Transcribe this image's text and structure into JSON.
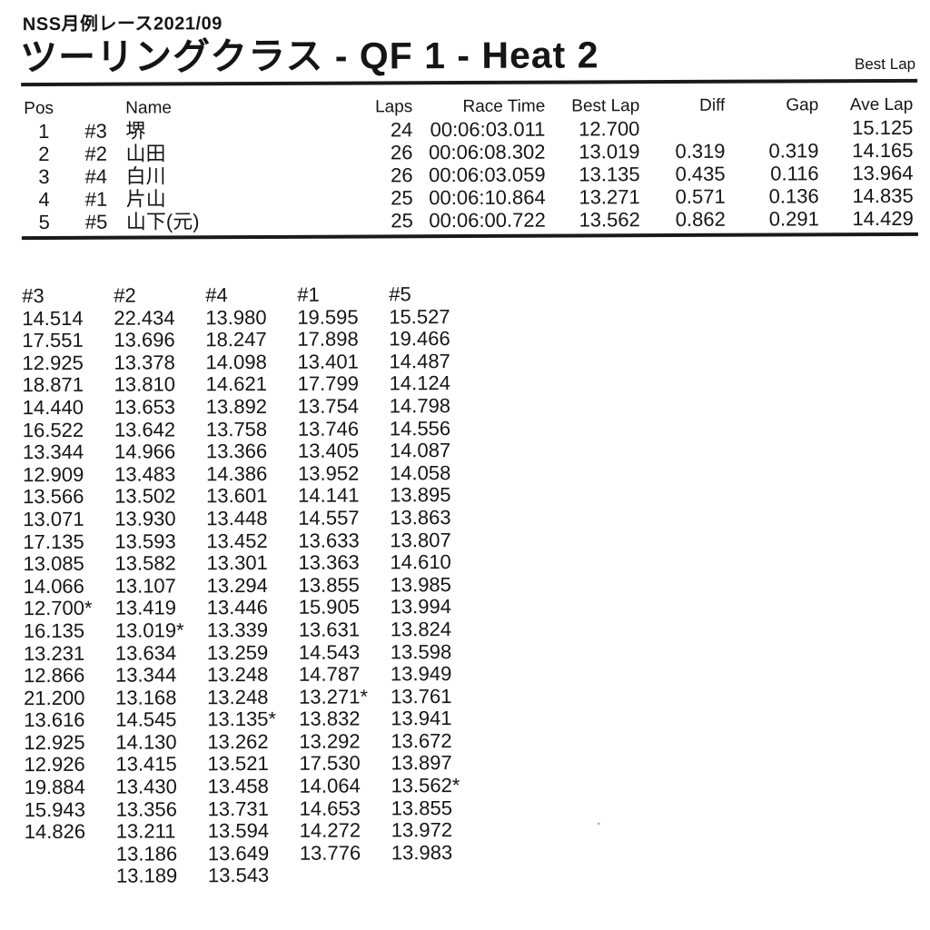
{
  "page": {
    "event_title": "NSS月例レース2021/09",
    "main_title": "ツーリングクラス - QF 1 - Heat 2",
    "best_lap_label": "Best Lap"
  },
  "results_table": {
    "headers": {
      "pos": "Pos",
      "name": "Name",
      "laps": "Laps",
      "race_time": "Race Time",
      "best_lap": "Best Lap",
      "diff": "Diff",
      "gap": "Gap",
      "ave_lap": "Ave Lap"
    },
    "rows": [
      {
        "pos": "1",
        "car": "#3",
        "name": "堺",
        "laps": "24",
        "race_time": "00:06:03.011",
        "best_lap": "12.700",
        "diff": "",
        "gap": "",
        "ave_lap": "15.125"
      },
      {
        "pos": "2",
        "car": "#2",
        "name": "山田",
        "laps": "26",
        "race_time": "00:06:08.302",
        "best_lap": "13.019",
        "diff": "0.319",
        "gap": "0.319",
        "ave_lap": "14.165"
      },
      {
        "pos": "3",
        "car": "#4",
        "name": "白川",
        "laps": "26",
        "race_time": "00:06:03.059",
        "best_lap": "13.135",
        "diff": "0.435",
        "gap": "0.116",
        "ave_lap": "13.964"
      },
      {
        "pos": "4",
        "car": "#1",
        "name": "片山",
        "laps": "25",
        "race_time": "00:06:10.864",
        "best_lap": "13.271",
        "diff": "0.571",
        "gap": "0.136",
        "ave_lap": "14.835"
      },
      {
        "pos": "5",
        "car": "#5",
        "name": "山下(元)",
        "laps": "25",
        "race_time": "00:06:00.722",
        "best_lap": "13.562",
        "diff": "0.862",
        "gap": "0.291",
        "ave_lap": "14.429"
      }
    ]
  },
  "lap_times_table": {
    "columns": [
      "#3",
      "#2",
      "#4",
      "#1",
      "#5"
    ],
    "rows": [
      [
        "14.514",
        "22.434",
        "13.980",
        "19.595",
        "15.527"
      ],
      [
        "17.551",
        "13.696",
        "18.247",
        "17.898",
        "19.466"
      ],
      [
        "12.925",
        "13.378",
        "14.098",
        "13.401",
        "14.487"
      ],
      [
        "18.871",
        "13.810",
        "14.621",
        "17.799",
        "14.124"
      ],
      [
        "14.440",
        "13.653",
        "13.892",
        "13.754",
        "14.798"
      ],
      [
        "16.522",
        "13.642",
        "13.758",
        "13.746",
        "14.556"
      ],
      [
        "13.344",
        "14.966",
        "13.366",
        "13.405",
        "14.087"
      ],
      [
        "12.909",
        "13.483",
        "14.386",
        "13.952",
        "14.058"
      ],
      [
        "13.566",
        "13.502",
        "13.601",
        "14.141",
        "13.895"
      ],
      [
        "13.071",
        "13.930",
        "13.448",
        "14.557",
        "13.863"
      ],
      [
        "17.135",
        "13.593",
        "13.452",
        "13.633",
        "13.807"
      ],
      [
        "13.085",
        "13.582",
        "13.301",
        "13.363",
        "14.610"
      ],
      [
        "14.066",
        "13.107",
        "13.294",
        "13.855",
        "13.985"
      ],
      [
        "12.700*",
        "13.419",
        "13.446",
        "15.905",
        "13.994"
      ],
      [
        "16.135",
        "13.019*",
        "13.339",
        "13.631",
        "13.824"
      ],
      [
        "13.231",
        "13.634",
        "13.259",
        "14.543",
        "13.598"
      ],
      [
        "12.866",
        "13.344",
        "13.248",
        "14.787",
        "13.949"
      ],
      [
        "21.200",
        "13.168",
        "13.248",
        "13.271*",
        "13.761"
      ],
      [
        "13.616",
        "14.545",
        "13.135*",
        "13.832",
        "13.941"
      ],
      [
        "12.925",
        "14.130",
        "13.262",
        "13.292",
        "13.672"
      ],
      [
        "12.926",
        "13.415",
        "13.521",
        "17.530",
        "13.897"
      ],
      [
        "19.884",
        "13.430",
        "13.458",
        "14.064",
        "13.562*"
      ],
      [
        "15.943",
        "13.356",
        "13.731",
        "14.653",
        "13.855"
      ],
      [
        "14.826",
        "13.211",
        "13.594",
        "14.272",
        "13.972"
      ],
      [
        "",
        "13.186",
        "13.649",
        "13.776",
        "13.983"
      ],
      [
        "",
        "13.189",
        "13.543",
        "",
        ""
      ]
    ]
  }
}
